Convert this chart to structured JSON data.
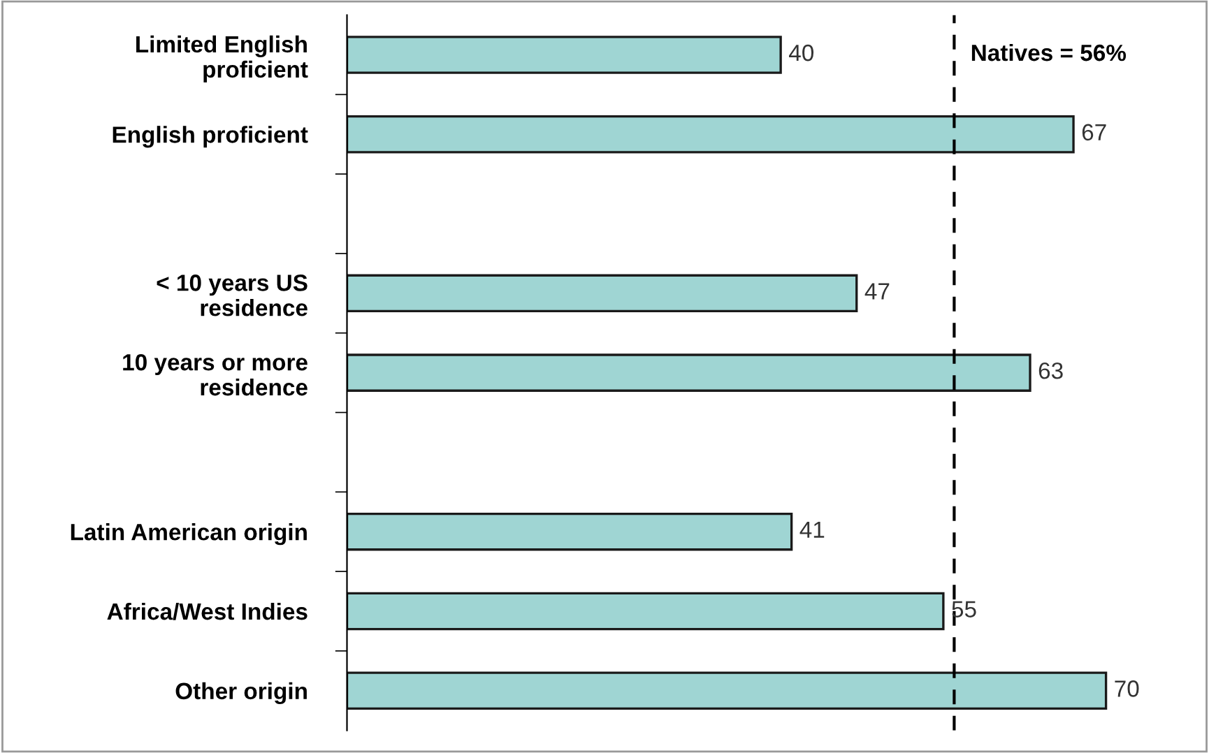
{
  "chart_data": {
    "type": "bar",
    "orientation": "horizontal",
    "categories": [
      "Limited English\nproficient",
      "English proficient",
      null,
      "< 10 years US\nresidence",
      "10 years or more\nresidence",
      null,
      "Latin American origin",
      "Africa/West Indies",
      "Other origin"
    ],
    "values": [
      40,
      67,
      null,
      47,
      63,
      null,
      41,
      55,
      70
    ],
    "color": "#9fd5d3",
    "data_labels": true,
    "grid": false,
    "legend": false,
    "tick_labels": "y",
    "ref_lines": [
      {
        "axis": "x",
        "value": 56,
        "label": "Natives = 56%",
        "color": "#000000",
        "line_style": "dashed"
      }
    ]
  }
}
